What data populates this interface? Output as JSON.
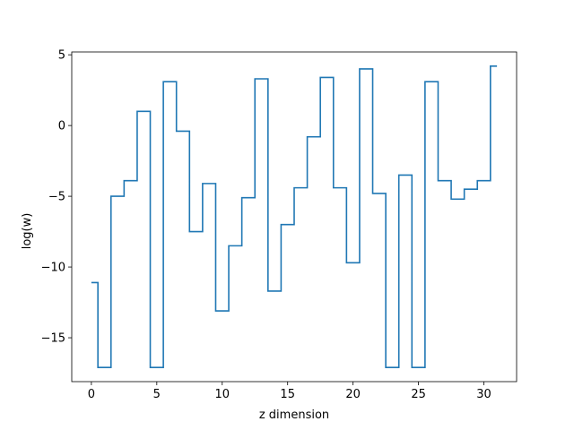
{
  "chart_data": {
    "type": "line",
    "drawstyle": "steps-mid",
    "xlabel": "z dimension",
    "ylabel": "log(w)",
    "xlim": [
      -1.5,
      32.5
    ],
    "ylim": [
      -18.1,
      5.2
    ],
    "xticks": [
      0,
      5,
      10,
      15,
      20,
      25,
      30
    ],
    "yticks": [
      5,
      0,
      -5,
      -10,
      -15
    ],
    "xtick_labels": [
      "0",
      "5",
      "10",
      "15",
      "20",
      "25",
      "30"
    ],
    "ytick_labels": [
      "5",
      "0",
      "−5",
      "−10",
      "−15"
    ],
    "grid": false,
    "series": [
      {
        "color": "#1f77b4",
        "x": [
          0,
          1,
          2,
          3,
          4,
          5,
          6,
          7,
          8,
          9,
          10,
          11,
          12,
          13,
          14,
          15,
          16,
          17,
          18,
          19,
          20,
          21,
          22,
          23,
          24,
          25,
          26,
          27,
          28,
          29,
          30,
          31
        ],
        "y": [
          -11.1,
          -17.1,
          -5.0,
          -3.9,
          1.0,
          -17.1,
          3.1,
          -0.4,
          -7.5,
          -4.1,
          -13.1,
          -8.5,
          -5.1,
          3.3,
          -11.7,
          -7.0,
          -4.4,
          -0.8,
          3.4,
          -4.4,
          -9.7,
          4.0,
          -4.8,
          -17.1,
          -3.5,
          -17.1,
          3.1,
          -3.9,
          -5.2,
          -4.5,
          -3.9,
          4.2
        ]
      }
    ]
  }
}
